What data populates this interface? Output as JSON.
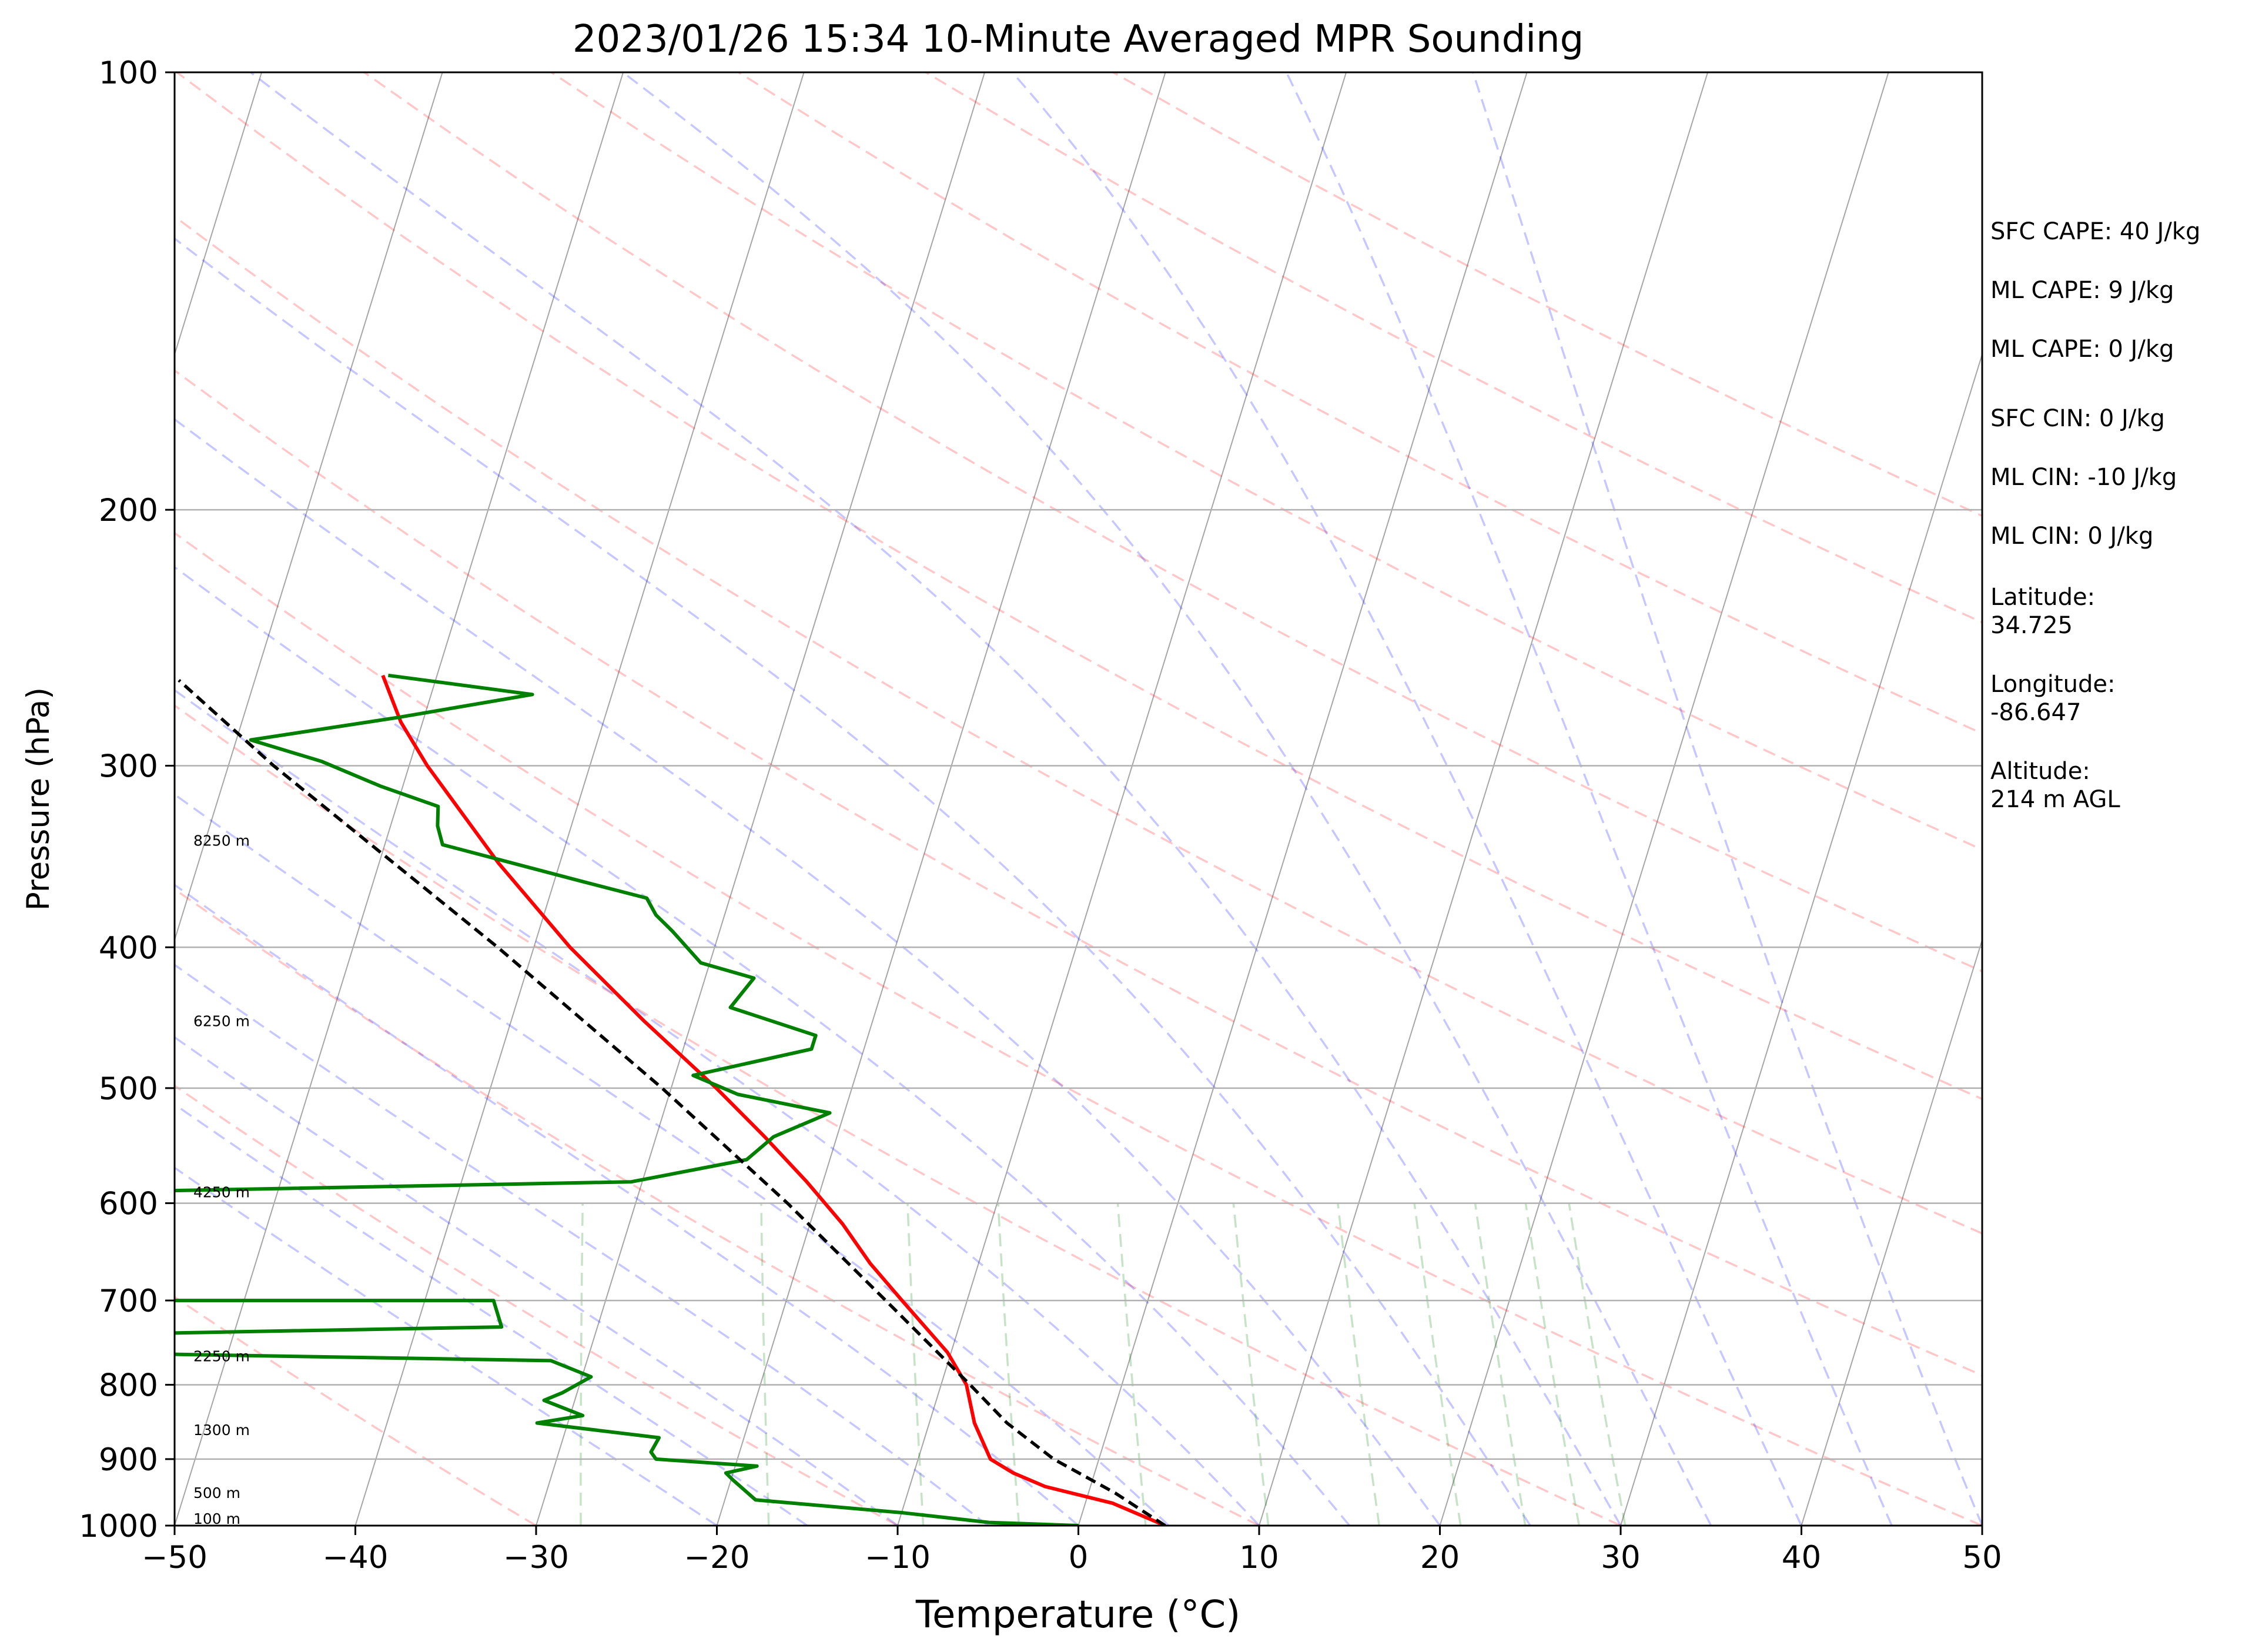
{
  "chart_data": {
    "type": "line",
    "title": "2023/01/26 15:34 10-Minute Averaged MPR Sounding",
    "xlabel": "Temperature (°C)",
    "ylabel": "Pressure (hPa)",
    "xlim": [
      -50,
      50
    ],
    "ylim": [
      1000,
      100
    ],
    "y_scale": "log",
    "skew": true,
    "x_ticks": [
      "−50",
      "−40",
      "−30",
      "−20",
      "−10",
      "0",
      "10",
      "20",
      "30",
      "40",
      "50"
    ],
    "y_ticks": [
      "100",
      "200",
      "300",
      "400",
      "500",
      "600",
      "700",
      "800",
      "900",
      "1000"
    ],
    "series": [
      {
        "key": "temperature",
        "color": "#ff0000",
        "points": [
          {
            "p": 1000,
            "t": 4.8
          },
          {
            "p": 965,
            "t": 1.5
          },
          {
            "p": 940,
            "t": -2.5
          },
          {
            "p": 920,
            "t": -4.5
          },
          {
            "p": 900,
            "t": -6.0
          },
          {
            "p": 850,
            "t": -7.5
          },
          {
            "p": 800,
            "t": -8.6
          },
          {
            "p": 760,
            "t": -10.2
          },
          {
            "p": 700,
            "t": -13.6
          },
          {
            "p": 660,
            "t": -16.0
          },
          {
            "p": 620,
            "t": -18.2
          },
          {
            "p": 580,
            "t": -20.9
          },
          {
            "p": 540,
            "t": -24.0
          },
          {
            "p": 500,
            "t": -27.5
          },
          {
            "p": 450,
            "t": -32.6
          },
          {
            "p": 400,
            "t": -38.0
          },
          {
            "p": 350,
            "t": -43.4
          },
          {
            "p": 300,
            "t": -49.0
          },
          {
            "p": 280,
            "t": -51.2
          },
          {
            "p": 260,
            "t": -53.0
          }
        ]
      },
      {
        "key": "dewpoint",
        "color": "#008000",
        "points": [
          {
            "p": 1000,
            "t": 0.0
          },
          {
            "p": 995,
            "t": -5.0
          },
          {
            "p": 980,
            "t": -9.9
          },
          {
            "p": 960,
            "t": -18.3
          },
          {
            "p": 930,
            "t": -19.9
          },
          {
            "p": 920,
            "t": -20.4
          },
          {
            "p": 910,
            "t": -18.8
          },
          {
            "p": 900,
            "t": -24.5
          },
          {
            "p": 890,
            "t": -24.9
          },
          {
            "p": 870,
            "t": -24.7
          },
          {
            "p": 850,
            "t": -31.7
          },
          {
            "p": 840,
            "t": -29.3
          },
          {
            "p": 820,
            "t": -31.7
          },
          {
            "p": 810,
            "t": -30.8
          },
          {
            "p": 790,
            "t": -29.5
          },
          {
            "p": 770,
            "t": -32.0
          },
          {
            "p": 760,
            "t": -59.3
          },
          {
            "p": 740,
            "t": -61.0
          },
          {
            "p": 730,
            "t": -35.3
          },
          {
            "p": 700,
            "t": -36.2
          },
          {
            "p": 700,
            "t": -59.5
          },
          {
            "p": 590,
            "t": -61.3
          },
          {
            "p": 580,
            "t": -30.6
          },
          {
            "p": 560,
            "t": -24.6
          },
          {
            "p": 540,
            "t": -23.5
          },
          {
            "p": 520,
            "t": -20.8
          },
          {
            "p": 505,
            "t": -26.2
          },
          {
            "p": 490,
            "t": -29.0
          },
          {
            "p": 470,
            "t": -22.9
          },
          {
            "p": 460,
            "t": -22.9
          },
          {
            "p": 440,
            "t": -28.1
          },
          {
            "p": 420,
            "t": -27.3
          },
          {
            "p": 410,
            "t": -30.5
          },
          {
            "p": 390,
            "t": -32.6
          },
          {
            "p": 380,
            "t": -33.8
          },
          {
            "p": 370,
            "t": -34.6
          },
          {
            "p": 360,
            "t": -38.6
          },
          {
            "p": 340,
            "t": -46.8
          },
          {
            "p": 330,
            "t": -47.4
          },
          {
            "p": 320,
            "t": -47.7
          },
          {
            "p": 310,
            "t": -51.2
          },
          {
            "p": 298,
            "t": -54.9
          },
          {
            "p": 288,
            "t": -59.2
          },
          {
            "p": 278,
            "t": -51.5
          },
          {
            "p": 268,
            "t": -44.4
          },
          {
            "p": 260,
            "t": -52.7
          }
        ]
      },
      {
        "key": "parcel",
        "color": "#000000",
        "dashed": true,
        "points": [
          {
            "p": 1000,
            "t": 4.8
          },
          {
            "p": 950,
            "t": 1.5
          },
          {
            "p": 900,
            "t": -2.5
          },
          {
            "p": 850,
            "t": -5.7
          },
          {
            "p": 800,
            "t": -8.4
          },
          {
            "p": 700,
            "t": -14.5
          },
          {
            "p": 600,
            "t": -21.6
          },
          {
            "p": 500,
            "t": -30.5
          },
          {
            "p": 400,
            "t": -42.0
          },
          {
            "p": 300,
            "t": -57.5
          },
          {
            "p": 262,
            "t": -64.2
          }
        ]
      }
    ],
    "height_labels": [
      "8250 m",
      "6250 m",
      "4250 m",
      "2250 m",
      "1300 m",
      "500 m",
      "100 m"
    ],
    "height_label_pressures": [
      338,
      450,
      590,
      765,
      860,
      950,
      990
    ],
    "background_lines": {
      "dry_adiabats_color": "#ff0000",
      "moist_adiabats_color": "#0000ff",
      "mixing_ratio_color": "#008000",
      "isotherm_color": "#808080"
    }
  },
  "side_panel": {
    "sfc_cape": "SFC CAPE: 40 J/kg",
    "ml_cape_1": "ML CAPE: 9 J/kg",
    "ml_cape_2": "ML CAPE: 0 J/kg",
    "sfc_cin": "SFC CIN: 0 J/kg",
    "ml_cin_1": "ML CIN: -10 J/kg",
    "ml_cin_2": "ML CIN: 0 J/kg",
    "latitude_label": "Latitude:",
    "latitude_value": "34.725",
    "longitude_label": "Longitude:",
    "longitude_value": "-86.647",
    "altitude_label": "Altitude:",
    "altitude_value": "214 m AGL"
  }
}
